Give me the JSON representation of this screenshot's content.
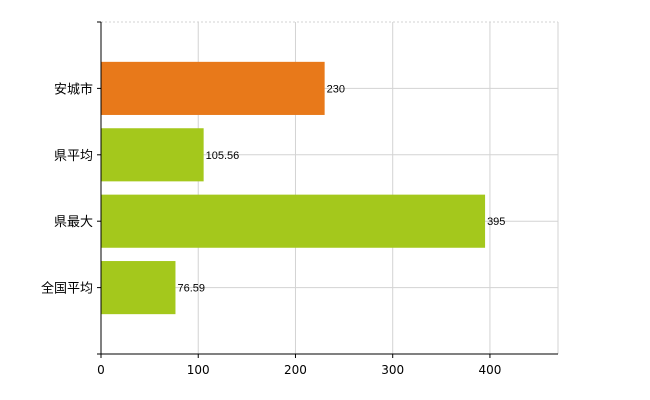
{
  "chart_data": {
    "type": "bar",
    "orientation": "horizontal",
    "categories": [
      "安城市",
      "県平均",
      "県最大",
      "全国平均"
    ],
    "values": [
      230,
      105.56,
      395,
      76.59
    ],
    "data_labels": [
      "230",
      "105.56",
      "395",
      "76.59"
    ],
    "bar_colors": [
      "#e8791a",
      "#a4c81c",
      "#a4c81c",
      "#a4c81c"
    ],
    "xlim": [
      0,
      470
    ],
    "x_ticks": [
      0,
      100,
      200,
      300,
      400
    ],
    "x_tick_labels": [
      "0",
      "100",
      "200",
      "300",
      "400"
    ],
    "grid": true,
    "title": "",
    "xlabel": "",
    "ylabel": ""
  }
}
